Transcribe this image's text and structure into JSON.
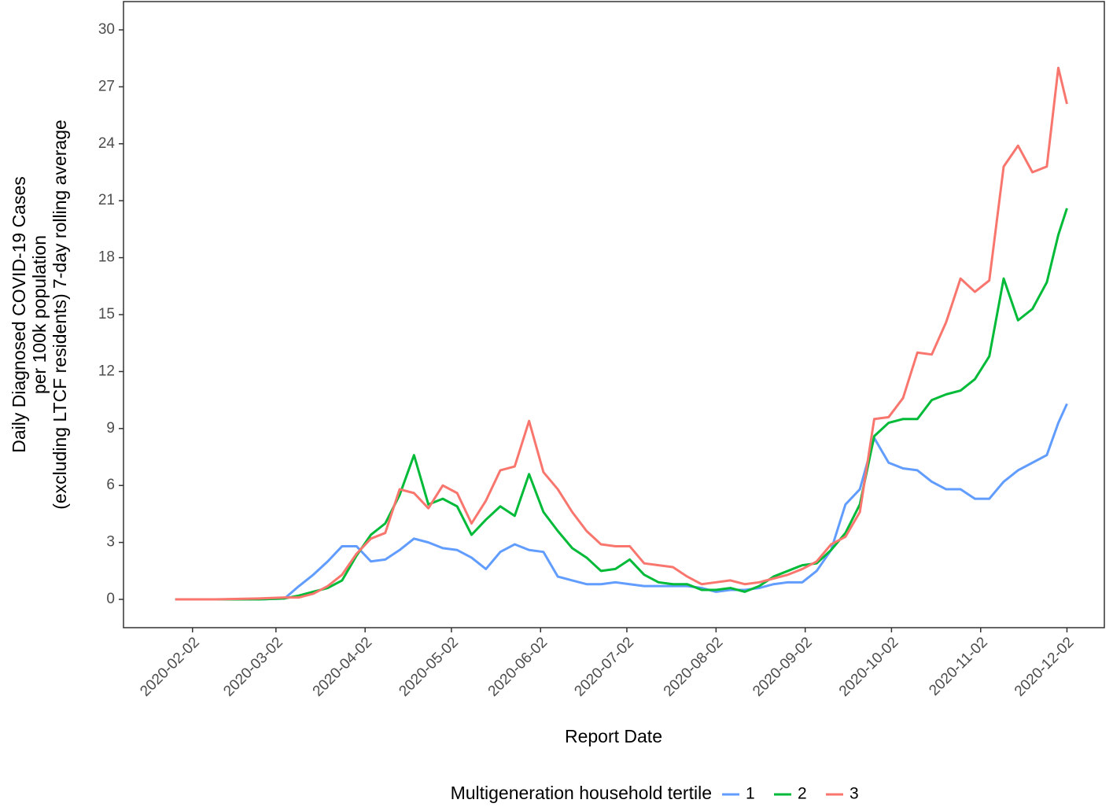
{
  "chart_data": {
    "type": "line",
    "ylabel": [
      "Daily Diagnosed COVID-19 Cases",
      "per 100k population",
      "(excluding LTCF residents) 7-day rolling average"
    ],
    "xlabel": "Report Date",
    "legend_title": "Multigeneration household tertile",
    "legend": "bottom",
    "x": [
      "2020-01-27",
      "2020-02-10",
      "2020-02-25",
      "2020-03-05",
      "2020-03-10",
      "2020-03-15",
      "2020-03-20",
      "2020-03-25",
      "2020-03-30",
      "2020-04-04",
      "2020-04-09",
      "2020-04-14",
      "2020-04-19",
      "2020-04-24",
      "2020-04-29",
      "2020-05-04",
      "2020-05-09",
      "2020-05-14",
      "2020-05-19",
      "2020-05-24",
      "2020-05-29",
      "2020-06-03",
      "2020-06-08",
      "2020-06-13",
      "2020-06-18",
      "2020-06-23",
      "2020-06-28",
      "2020-07-03",
      "2020-07-08",
      "2020-07-13",
      "2020-07-18",
      "2020-07-23",
      "2020-07-28",
      "2020-08-02",
      "2020-08-07",
      "2020-08-12",
      "2020-08-17",
      "2020-08-22",
      "2020-08-27",
      "2020-09-01",
      "2020-09-06",
      "2020-09-11",
      "2020-09-16",
      "2020-09-21",
      "2020-09-26",
      "2020-10-01",
      "2020-10-06",
      "2020-10-11",
      "2020-10-16",
      "2020-10-21",
      "2020-10-26",
      "2020-10-31",
      "2020-11-05",
      "2020-11-10",
      "2020-11-15",
      "2020-11-20",
      "2020-11-25",
      "2020-11-29",
      "2020-12-02"
    ],
    "series": [
      {
        "name": "1",
        "color": "#619CFF",
        "values": [
          0,
          0,
          0,
          0.05,
          0.7,
          1.3,
          2.0,
          2.8,
          2.8,
          2.0,
          2.1,
          2.6,
          3.2,
          3.0,
          2.7,
          2.6,
          2.2,
          1.6,
          2.5,
          2.9,
          2.6,
          2.5,
          1.2,
          1.0,
          0.8,
          0.8,
          0.9,
          0.8,
          0.7,
          0.7,
          0.7,
          0.7,
          0.6,
          0.4,
          0.5,
          0.5,
          0.6,
          0.8,
          0.9,
          0.9,
          1.5,
          2.6,
          5.0,
          5.8,
          8.5,
          7.2,
          6.9,
          6.8,
          6.2,
          5.8,
          5.8,
          5.3,
          5.3,
          6.2,
          6.8,
          7.2,
          7.6,
          9.3,
          10.3
        ]
      },
      {
        "name": "2",
        "color": "#00BA38",
        "values": [
          0,
          0,
          0,
          0.05,
          0.2,
          0.4,
          0.6,
          1.0,
          2.3,
          3.4,
          4.0,
          5.5,
          7.6,
          5.0,
          5.3,
          4.9,
          3.4,
          4.2,
          4.9,
          4.4,
          6.6,
          4.6,
          3.6,
          2.7,
          2.2,
          1.5,
          1.6,
          2.1,
          1.3,
          0.9,
          0.8,
          0.8,
          0.5,
          0.5,
          0.6,
          0.4,
          0.7,
          1.2,
          1.5,
          1.8,
          1.9,
          2.6,
          3.5,
          5.0,
          8.6,
          9.3,
          9.5,
          9.5,
          10.5,
          10.8,
          11.0,
          11.6,
          12.8,
          16.9,
          14.7,
          15.3,
          16.7,
          19.2,
          20.6
        ]
      },
      {
        "name": "3",
        "color": "#F8766D",
        "values": [
          0,
          0,
          0.05,
          0.1,
          0.1,
          0.3,
          0.7,
          1.3,
          2.4,
          3.2,
          3.5,
          5.8,
          5.6,
          4.8,
          6.0,
          5.6,
          4.0,
          5.2,
          6.8,
          7.0,
          9.4,
          6.7,
          5.8,
          4.6,
          3.6,
          2.9,
          2.8,
          2.8,
          1.9,
          1.8,
          1.7,
          1.2,
          0.8,
          0.9,
          1.0,
          0.8,
          0.9,
          1.1,
          1.3,
          1.6,
          2.0,
          2.9,
          3.3,
          4.6,
          9.5,
          9.6,
          10.6,
          13.0,
          12.9,
          14.6,
          16.9,
          16.2,
          16.8,
          22.8,
          23.9,
          22.5,
          22.8,
          28.0,
          26.1
        ]
      }
    ],
    "xlim": [
      "2020-01-09",
      "2020-12-15"
    ],
    "xticks": [
      "2020-02-02",
      "2020-03-02",
      "2020-04-02",
      "2020-05-02",
      "2020-06-02",
      "2020-07-02",
      "2020-08-02",
      "2020-09-02",
      "2020-10-02",
      "2020-11-02",
      "2020-12-02"
    ],
    "ylim": [
      -1.49,
      31.49
    ],
    "yticks": [
      0,
      3,
      6,
      9,
      12,
      15,
      18,
      21,
      24,
      27,
      30
    ]
  }
}
